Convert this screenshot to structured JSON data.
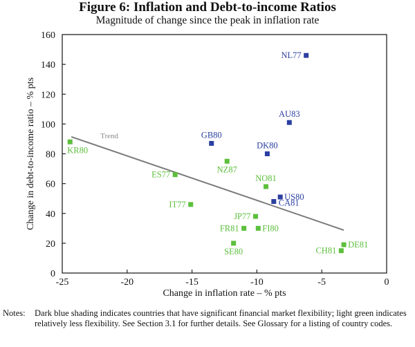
{
  "chart_data": {
    "type": "scatter",
    "title": "Figure 6: Inflation and Debt-to-income Ratios",
    "subtitle": "Magnitude of change since the peak in inflation rate",
    "xlabel": "Change in inflation rate – % pts",
    "ylabel": "Change in debt-to-income ratio – % pts",
    "xlim": [
      -25,
      0
    ],
    "ylim": [
      0,
      160
    ],
    "xticks": [
      -25,
      -20,
      -15,
      -10,
      -5,
      0
    ],
    "yticks": [
      0,
      20,
      40,
      60,
      80,
      100,
      120,
      140,
      160
    ],
    "grid": false,
    "colors": {
      "flexible": "#2b3fa0",
      "less_flexible": "#5cbf3c",
      "trend": "#7a7a7a"
    },
    "series": [
      {
        "name": "Significant financial market flexibility",
        "color_key": "flexible",
        "points": [
          {
            "label": "NL77",
            "x": -6.2,
            "y": 146,
            "label_pos": "left"
          },
          {
            "label": "AU83",
            "x": -7.5,
            "y": 101,
            "label_pos": "above"
          },
          {
            "label": "GB80",
            "x": -13.5,
            "y": 87,
            "label_pos": "above"
          },
          {
            "label": "DK80",
            "x": -9.2,
            "y": 80,
            "label_pos": "above"
          },
          {
            "label": "US80",
            "x": -8.2,
            "y": 51,
            "label_pos": "right"
          },
          {
            "label": "CA81",
            "x": -8.7,
            "y": 48,
            "label_pos": "right-below"
          }
        ]
      },
      {
        "name": "Relatively less flexibility",
        "color_key": "less_flexible",
        "points": [
          {
            "label": "KR80",
            "x": -24.4,
            "y": 88,
            "label_pos": "below"
          },
          {
            "label": "NZ87",
            "x": -12.3,
            "y": 75,
            "label_pos": "below"
          },
          {
            "label": "ES77",
            "x": -16.3,
            "y": 66,
            "label_pos": "left"
          },
          {
            "label": "NO81",
            "x": -9.3,
            "y": 58,
            "label_pos": "above"
          },
          {
            "label": "IT77",
            "x": -15.1,
            "y": 46,
            "label_pos": "left"
          },
          {
            "label": "JP77",
            "x": -10.1,
            "y": 38,
            "label_pos": "left"
          },
          {
            "label": "FR81",
            "x": -11.0,
            "y": 30,
            "label_pos": "left"
          },
          {
            "label": "FI80",
            "x": -9.9,
            "y": 30,
            "label_pos": "right"
          },
          {
            "label": "SE80",
            "x": -11.8,
            "y": 20,
            "label_pos": "below"
          },
          {
            "label": "DE81",
            "x": -3.3,
            "y": 19,
            "label_pos": "right"
          },
          {
            "label": "CH81",
            "x": -3.5,
            "y": 15,
            "label_pos": "left"
          }
        ]
      }
    ],
    "trend": {
      "label": "Trend",
      "start": {
        "x": -24.3,
        "y": 91.4
      },
      "end": {
        "x": -3.3,
        "y": 28.8
      }
    }
  },
  "notes": {
    "label": "Notes:",
    "text": "Dark blue shading indicates countries that have significant financial market flexibility; light green indicates relatively less flexibility. See Section 3.1 for further details. See Glossary for a listing of country codes."
  }
}
